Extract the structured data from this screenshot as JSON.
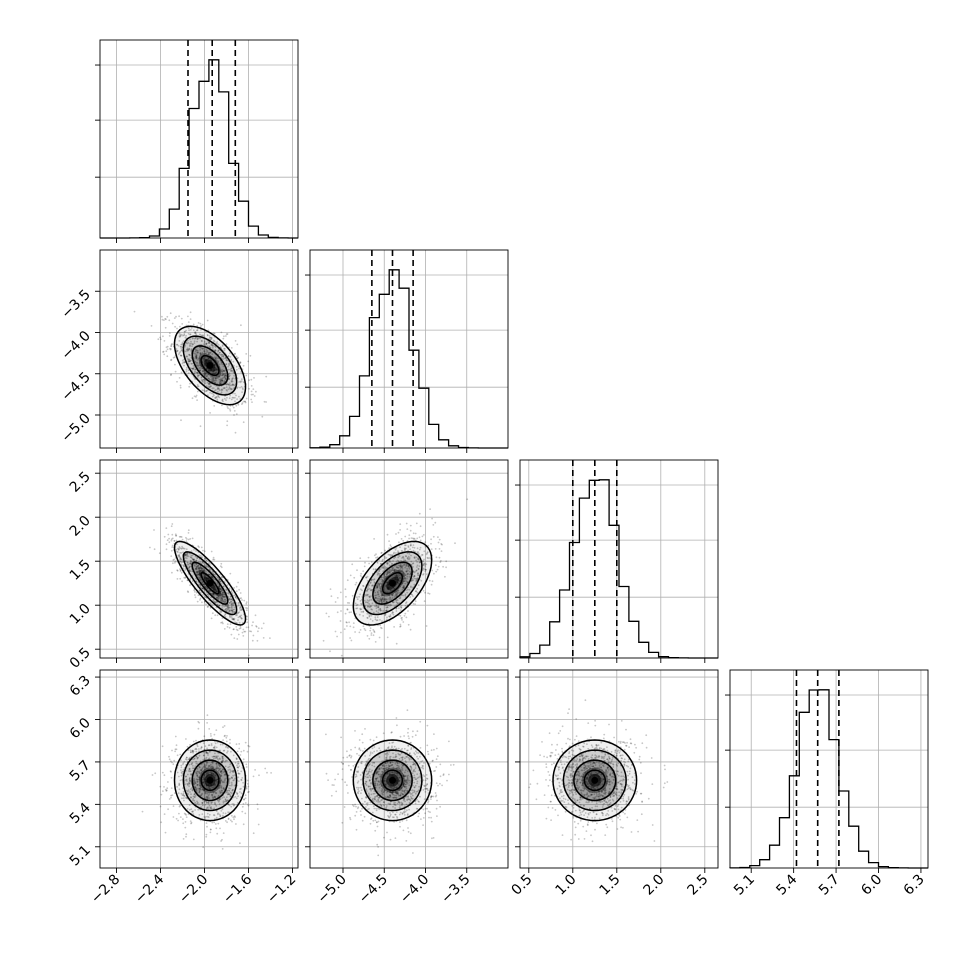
{
  "chart_data": {
    "type": "corner",
    "parameters": [
      {
        "mean": -1.95,
        "sd": 0.17,
        "range": [
          -2.95,
          -1.15
        ],
        "quantiles": [
          -2.15,
          -1.93,
          -1.72
        ],
        "ticks": [
          -2.8,
          -2.4,
          -2.0,
          -1.6,
          -1.2
        ],
        "tick_labels": [
          "−2.8",
          "−2.4",
          "−2.0",
          "−1.6",
          "−1.2"
        ]
      },
      {
        "mean": -4.4,
        "sd": 0.25,
        "range": [
          -5.4,
          -3.0
        ],
        "quantiles": [
          -4.65,
          -4.4,
          -4.15
        ],
        "ticks": [
          -5.0,
          -4.5,
          -4.0,
          -3.5
        ],
        "tick_labels": [
          "−5.0",
          "−4.5",
          "−4.0",
          "−3.5"
        ]
      },
      {
        "mean": 1.25,
        "sd": 0.25,
        "range": [
          0.4,
          2.65
        ],
        "quantiles": [
          1.0,
          1.25,
          1.5
        ],
        "ticks": [
          0.5,
          1.0,
          1.5,
          2.0,
          2.5
        ],
        "tick_labels": [
          "0.5",
          "1.0",
          "1.5",
          "2.0",
          "2.5"
        ]
      },
      {
        "mean": 5.57,
        "sd": 0.15,
        "range": [
          4.95,
          6.35
        ],
        "quantiles": [
          5.42,
          5.57,
          5.72
        ],
        "ticks": [
          5.1,
          5.4,
          5.7,
          6.0,
          6.3
        ],
        "tick_labels": [
          "5.1",
          "5.4",
          "5.7",
          "6.0",
          "6.3"
        ]
      }
    ],
    "correlations": [
      [
        1.0,
        -0.55,
        -0.85,
        0.0
      ],
      [
        -0.55,
        1.0,
        0.55,
        0.0
      ],
      [
        -0.85,
        0.55,
        1.0,
        0.0
      ],
      [
        0.0,
        0.0,
        0.0,
        1.0
      ]
    ],
    "histogram_bins": 20,
    "contour_levels_sigma": [
      0.5,
      1.0,
      1.5,
      2.0
    ],
    "grid": true,
    "colors": {
      "points": "#000000",
      "contour": "#000000",
      "grid": "#b0b0b0"
    }
  }
}
